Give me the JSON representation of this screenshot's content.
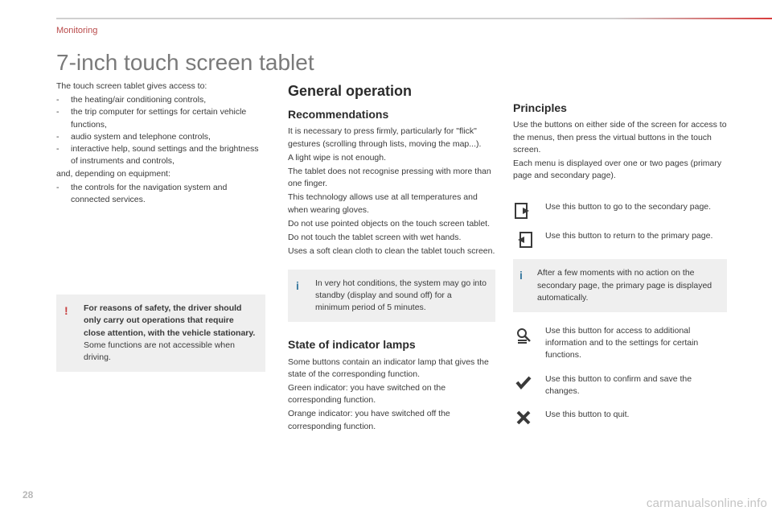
{
  "header": {
    "section": "Monitoring",
    "title": "7-inch touch screen tablet"
  },
  "col1": {
    "intro": "The touch screen tablet gives access to:",
    "bullets1": [
      "the heating/air conditioning controls,",
      "the trip computer for settings for certain vehicle functions,",
      "audio system and telephone controls,",
      "interactive help, sound settings and the brightness of instruments and controls,"
    ],
    "mid": "and, depending on equipment:",
    "bullets2": [
      "the controls for the navigation system and connected services."
    ],
    "warning_bold": "For reasons of safety, the driver should only carry out operations that require close attention, with the vehicle stationary.",
    "warning_rest": "Some functions are not accessible when driving."
  },
  "col2": {
    "heading": "General operation",
    "rec_head": "Recommendations",
    "rec_paras": [
      "It is necessary to press firmly, particularly for \"flick\" gestures (scrolling through lists, moving the map...).",
      "A light wipe is not enough.",
      "The tablet does not recognise pressing with more than one finger.",
      "This technology allows use at all temperatures and when wearing gloves.",
      "Do not use pointed objects on the touch screen tablet.",
      "Do not touch the tablet screen with wet hands.",
      "Uses a soft clean cloth to clean the tablet touch screen."
    ],
    "info_note": "In very hot conditions, the system may go into standby (display and sound off) for a minimum period of 5 minutes.",
    "state_head": "State of indicator lamps",
    "state_paras": [
      "Some buttons contain an indicator lamp that gives the state of the corresponding function.",
      "Green indicator: you have switched on the corresponding function.",
      "Orange indicator: you have switched off the corresponding function."
    ]
  },
  "col3": {
    "principles_head": "Principles",
    "principles_paras": [
      "Use the buttons on either side of the screen for access to the menus, then press the virtual buttons in the touch screen.",
      "Each menu is displayed over one or two pages (primary page and secondary page)."
    ],
    "btn_secondary": "Use this button to go to the secondary page.",
    "btn_primary": "Use this button to return to the primary page.",
    "info_auto": "After a few moments with no action on the secondary page, the primary page is displayed automatically.",
    "btn_settings": "Use this button for access to additional information and to the settings for certain functions.",
    "btn_confirm": "Use this button to confirm and save the changes.",
    "btn_quit": "Use this button to quit."
  },
  "page_number": "28",
  "watermark": "carmanualsonline.info",
  "colors": {
    "grey_bg": "#efefef",
    "red": "#c84040",
    "blue": "#3a7aa0",
    "icon": "#3a3a3a"
  }
}
